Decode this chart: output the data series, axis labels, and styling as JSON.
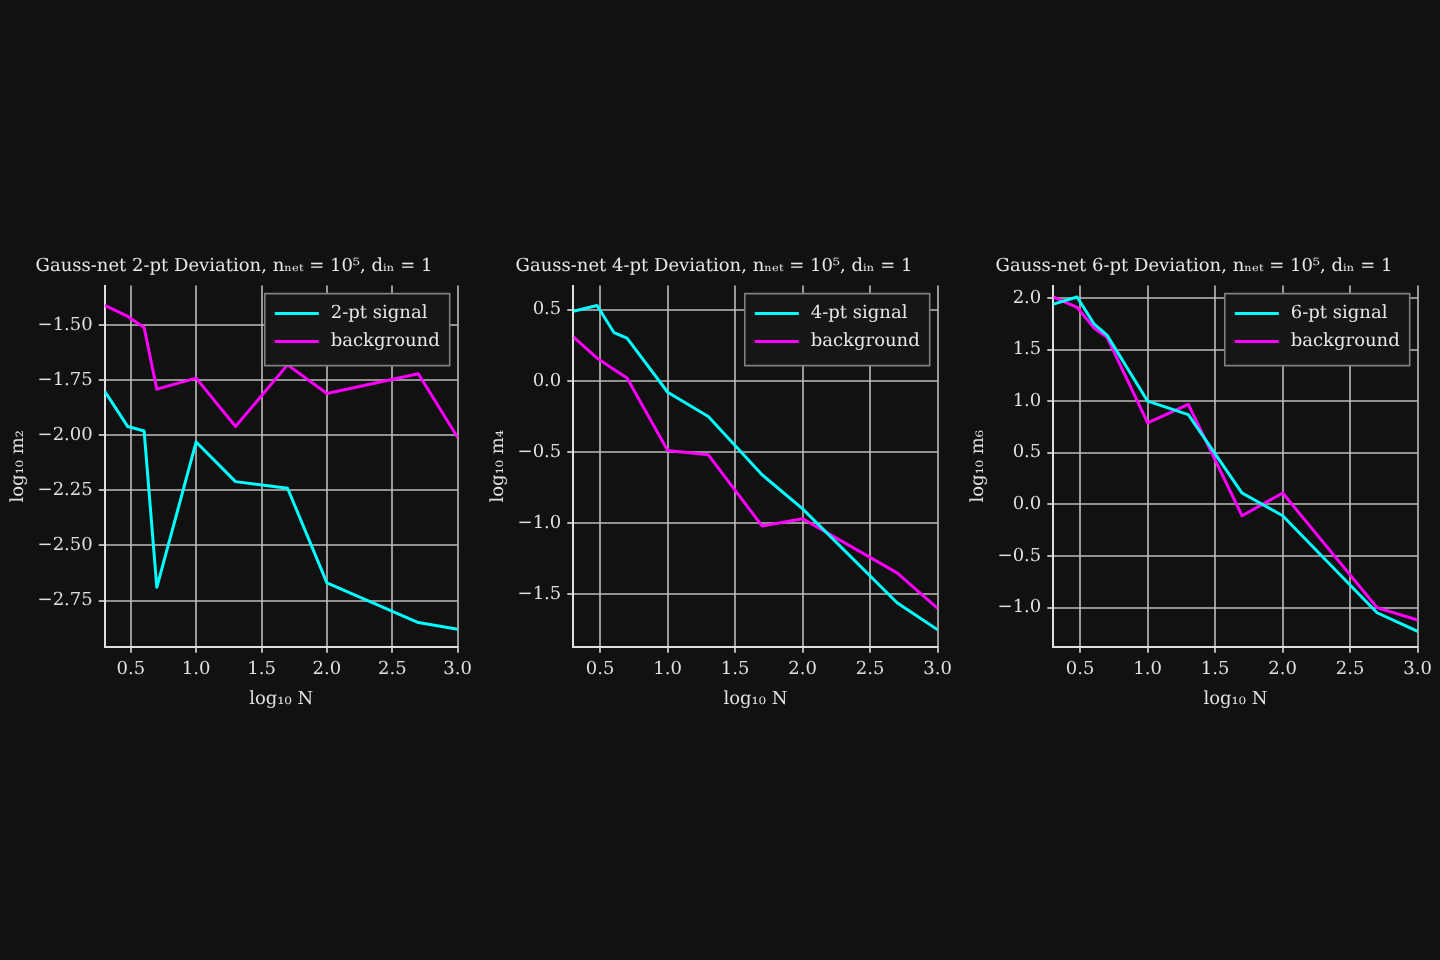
{
  "chart_data": [
    {
      "type": "line",
      "title": "Gauss-net 2-pt Deviation, nₙₑₜ = 10⁵, dᵢₙ = 1",
      "xlabel": "log₁₀ N",
      "ylabel": "log₁₀ m₂",
      "x": [
        0.301,
        0.477,
        0.602,
        0.699,
        1.0,
        1.301,
        1.699,
        2.0,
        2.699,
        3.0
      ],
      "series": [
        {
          "name": "2-pt signal",
          "color": "#00ffff",
          "values": [
            -1.8,
            -1.96,
            -1.98,
            -2.69,
            -2.03,
            -2.21,
            -2.24,
            -2.67,
            -2.85,
            -2.88
          ]
        },
        {
          "name": "background",
          "color": "#ff00ff",
          "values": [
            -1.41,
            -1.46,
            -1.51,
            -1.79,
            -1.74,
            -1.96,
            -1.68,
            -1.81,
            -1.72,
            -2.01
          ]
        }
      ],
      "xlim": [
        0.301,
        3.0
      ],
      "xticks": [
        0.5,
        {
          "value": 1,
          "label": "1.0"
        },
        1.5,
        {
          "value": 2,
          "label": "2.0"
        },
        2.5,
        {
          "value": 3,
          "label": "3.0"
        }
      ],
      "ylim": [
        -2.96,
        -1.32
      ],
      "yticks": [
        {
          "value": -2.75,
          "label": "−2.75"
        },
        {
          "value": -2.5,
          "label": "−2.50"
        },
        {
          "value": -2.25,
          "label": "−2.25"
        },
        {
          "value": -2,
          "label": "−2.00"
        },
        {
          "value": -1.75,
          "label": "−1.75"
        },
        {
          "value": -1.5,
          "label": "−1.50"
        }
      ],
      "grid": true,
      "legend": "top right",
      "marker": "none",
      "line_style": "solid"
    },
    {
      "type": "line",
      "title": "Gauss-net 4-pt Deviation, nₙₑₜ = 10⁵, dᵢₙ = 1",
      "xlabel": "log₁₀ N",
      "ylabel": "log₁₀ m₄",
      "x": [
        0.301,
        0.477,
        0.602,
        0.699,
        1.0,
        1.301,
        1.699,
        2.0,
        2.699,
        3.0
      ],
      "series": [
        {
          "name": "4-pt signal",
          "color": "#00ffff",
          "values": [
            0.49,
            0.53,
            0.34,
            0.3,
            -0.08,
            -0.25,
            -0.66,
            -0.9,
            -1.56,
            -1.75
          ]
        },
        {
          "name": "background",
          "color": "#ff00ff",
          "values": [
            0.31,
            0.16,
            0.08,
            0.02,
            -0.49,
            -0.52,
            -1.02,
            -0.97,
            -1.35,
            -1.6
          ]
        }
      ],
      "xlim": [
        0.301,
        3.0
      ],
      "xticks": [
        0.5,
        {
          "value": 1,
          "label": "1.0"
        },
        1.5,
        {
          "value": 2,
          "label": "2.0"
        },
        2.5,
        {
          "value": 3,
          "label": "3.0"
        }
      ],
      "ylim": [
        -1.87,
        0.67
      ],
      "yticks": [
        {
          "value": -1.5,
          "label": "−1.5"
        },
        {
          "value": -1,
          "label": "−1.0"
        },
        {
          "value": -0.5,
          "label": "−0.5"
        },
        {
          "value": 0,
          "label": "0.0"
        },
        {
          "value": 0.5,
          "label": "0.5"
        }
      ],
      "grid": true,
      "legend": "top right",
      "marker": "none",
      "line_style": "solid"
    },
    {
      "type": "line",
      "title": "Gauss-net 6-pt Deviation, nₙₑₜ = 10⁵, dᵢₙ = 1",
      "xlabel": "log₁₀ N",
      "ylabel": "log₁₀ m₆",
      "x": [
        0.301,
        0.477,
        0.602,
        0.699,
        1.0,
        1.301,
        1.699,
        2.0,
        2.699,
        3.0
      ],
      "series": [
        {
          "name": "6-pt signal",
          "color": "#00ffff",
          "values": [
            1.94,
            2.01,
            1.75,
            1.64,
            1.0,
            0.87,
            0.11,
            -0.11,
            -1.05,
            -1.23
          ]
        },
        {
          "name": "background",
          "color": "#ff00ff",
          "values": [
            2.01,
            1.91,
            1.71,
            1.62,
            0.79,
            0.97,
            -0.11,
            0.11,
            -1.0,
            -1.12
          ]
        }
      ],
      "xlim": [
        0.301,
        3.0
      ],
      "xticks": [
        0.5,
        {
          "value": 1,
          "label": "1.0"
        },
        1.5,
        {
          "value": 2,
          "label": "2.0"
        },
        2.5,
        {
          "value": 3,
          "label": "3.0"
        }
      ],
      "ylim": [
        -1.38,
        2.12
      ],
      "yticks": [
        {
          "value": -1,
          "label": "−1.0"
        },
        {
          "value": -0.5,
          "label": "−0.5"
        },
        {
          "value": 0,
          "label": "0.0"
        },
        {
          "value": 0.5,
          "label": "0.5"
        },
        {
          "value": 1,
          "label": "1.0"
        },
        {
          "value": 1.5,
          "label": "1.5"
        },
        {
          "value": 2,
          "label": "2.0"
        }
      ],
      "grid": true,
      "legend": "top right",
      "marker": "none",
      "line_style": "solid"
    }
  ]
}
